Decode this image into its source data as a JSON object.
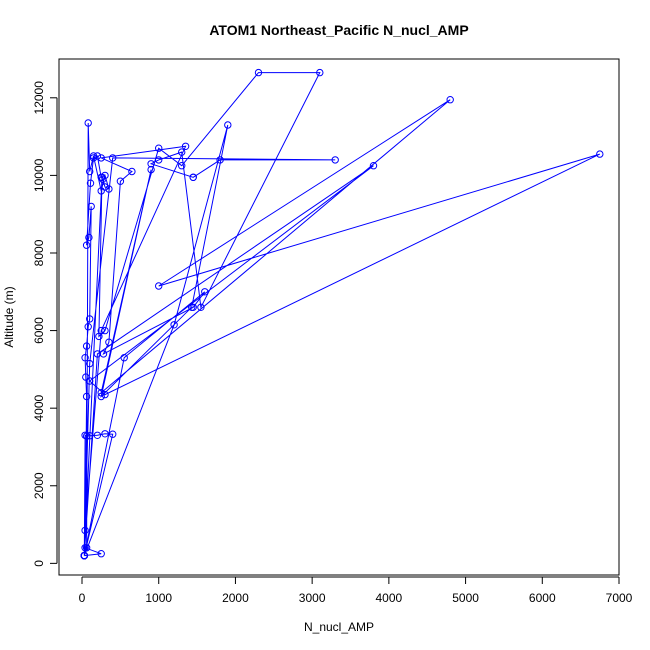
{
  "chart_data": {
    "type": "line",
    "title": "ATOM1 Northeast_Pacific N_nucl_AMP",
    "xlabel": "N_nucl_AMP",
    "ylabel": "Altitude (m)",
    "xlim": [
      -300,
      7000
    ],
    "ylim": [
      -300,
      13000
    ],
    "xticks": [
      0,
      1000,
      2000,
      3000,
      4000,
      5000,
      6000,
      7000
    ],
    "yticks": [
      0,
      2000,
      4000,
      6000,
      8000,
      10000,
      12000
    ],
    "grid": false,
    "legend": "none",
    "series": [
      {
        "color": "#0000ff",
        "x": [
          30,
          250,
          40,
          60,
          50,
          40,
          60,
          80,
          100,
          120,
          90,
          60,
          110,
          150,
          200,
          250,
          270,
          300,
          350,
          300,
          250,
          150,
          100,
          80,
          60,
          30,
          30,
          400,
          300,
          200,
          100,
          60,
          40,
          30,
          30,
          260,
          220,
          300,
          1000,
          1300,
          2300,
          3100,
          1550,
          1300,
          1000,
          900,
          1450,
          1450,
          1800,
          3300,
          400,
          100,
          30,
          30,
          1200,
          1900,
          1430,
          250,
          900,
          250,
          4800,
          1000,
          6750,
          300,
          100,
          3800,
          200,
          30,
          30,
          550,
          1600,
          1450,
          280,
          350,
          500,
          650,
          250,
          1350,
          250,
          40,
          30
        ],
        "y": [
          200,
          250,
          400,
          4300,
          4800,
          5300,
          5600,
          6100,
          6300,
          9200,
          8400,
          8200,
          9800,
          10450,
          10500,
          9950,
          9900,
          9700,
          9650,
          10000,
          9600,
          10500,
          10100,
          11350,
          400,
          200,
          200,
          3330,
          3340,
          3300,
          3290,
          3280,
          3300,
          200,
          200,
          9950,
          5850,
          6000,
          10700,
          10250,
          12650,
          12650,
          6600,
          10600,
          10400,
          10300,
          9950,
          9950,
          10400,
          10400,
          10450,
          5150,
          200,
          200,
          6150,
          11300,
          6600,
          4300,
          10150,
          4400,
          11950,
          7150,
          10550,
          4350,
          4700,
          10250,
          5400,
          200,
          200,
          5300,
          7000,
          6600,
          5400,
          5700,
          9850,
          10100,
          10450,
          10750,
          6000,
          850,
          200
        ]
      }
    ]
  }
}
